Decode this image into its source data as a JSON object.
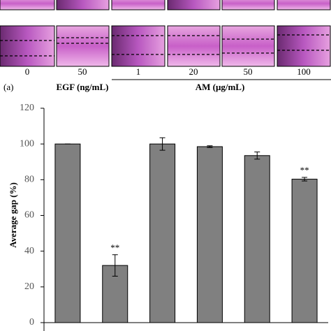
{
  "panel": {
    "concentrations": [
      "0",
      "50",
      "1",
      "20",
      "50",
      "100"
    ],
    "label": "(a)",
    "egf_label": "EGF (ng/mL)",
    "am_label": "AM (μg/mL)"
  },
  "chart_data": {
    "type": "bar",
    "y_label": "Average gap (%)",
    "categories": [
      null,
      null,
      null,
      null,
      null,
      null
    ],
    "values": [
      100,
      32,
      100,
      98.5,
      93.5,
      80.3
    ],
    "errors": [
      0,
      6,
      3.5,
      0.5,
      2,
      1
    ],
    "bar_labels": [
      null,
      "**",
      null,
      null,
      null,
      "**"
    ],
    "color": "#808080",
    "ylim": [
      0,
      120
    ],
    "yticks": [
      0,
      20,
      40,
      60,
      80,
      100,
      120
    ]
  }
}
